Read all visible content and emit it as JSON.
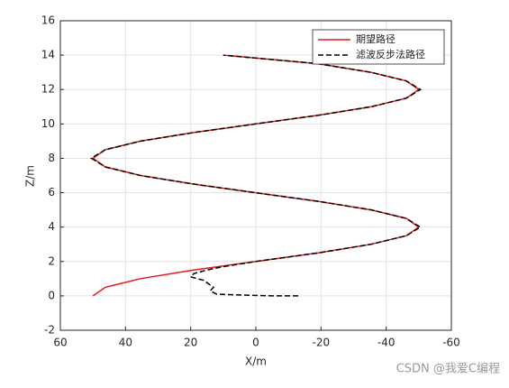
{
  "chart_data": {
    "type": "line",
    "x_label": "X/m",
    "y_label": "Z/m",
    "xlim": [
      60,
      -60
    ],
    "xticks": [
      60,
      40,
      20,
      0,
      -20,
      -40,
      -60
    ],
    "ylim": [
      -2,
      16
    ],
    "yticks": [
      -2,
      0,
      2,
      4,
      6,
      8,
      10,
      12,
      14,
      16
    ],
    "grid": true,
    "legend": "upper right",
    "series": [
      {
        "name": "期望路径",
        "color": "#e41a1c",
        "dash": false,
        "x": [
          50,
          46.2,
          35.4,
          19.1,
          0,
          -19.1,
          -35.4,
          -46.2,
          -50,
          -46.2,
          -35.4,
          -19.1,
          0,
          19.1,
          35.4,
          46.2,
          50,
          46.2,
          35.4,
          19.1,
          0,
          -19.1,
          -35.4,
          -46.2,
          -50,
          -46.2,
          -35.4,
          -19.1,
          10
        ],
        "values": [
          0,
          0.5,
          1,
          1.5,
          2,
          2.5,
          3,
          3.5,
          4,
          4.5,
          5,
          5.5,
          6,
          6.5,
          7,
          7.5,
          8,
          8.5,
          9,
          9.5,
          10,
          10.5,
          11,
          11.5,
          12,
          12.5,
          13,
          13.5,
          14
        ]
      },
      {
        "name": "滤波反步法路径",
        "color": "#000000",
        "dash": true,
        "x": [
          -13,
          -5,
          5,
          12,
          14,
          13,
          16,
          20,
          19,
          15,
          10,
          0,
          -19.1,
          -35.4,
          -46.2,
          -50.5,
          -46.2,
          -35.4,
          -19.1,
          0,
          19.1,
          35.4,
          46.2,
          50.5,
          46.2,
          35.4,
          19.1,
          0,
          -19.1,
          -35.4,
          -46.2,
          -50.5,
          -46.2,
          -35.4,
          -19.1,
          10
        ],
        "values": [
          0,
          0,
          0.05,
          0.1,
          0.3,
          0.5,
          0.9,
          1.1,
          1.3,
          1.5,
          1.7,
          2,
          2.5,
          3,
          3.5,
          4,
          4.5,
          5,
          5.5,
          6,
          6.5,
          7,
          7.5,
          8,
          8.5,
          9,
          9.5,
          10,
          10.5,
          11,
          11.5,
          12,
          12.5,
          13,
          13.5,
          14
        ]
      }
    ],
    "watermark": "CSDN @我爱C编程"
  }
}
